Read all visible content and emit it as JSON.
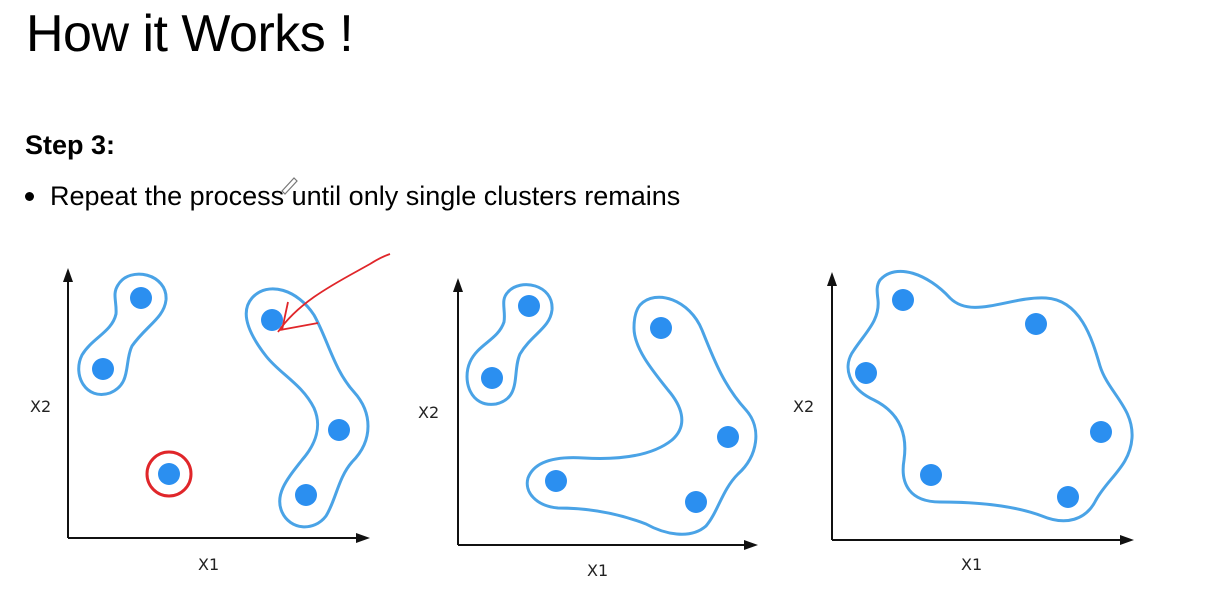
{
  "slide": {
    "title": "How it Works !",
    "step_heading": "Step 3:",
    "bullet": "Repeat the process until only single clusters remains"
  },
  "colors": {
    "point": "#2b8ff0",
    "cluster_outline": "#4aa3e6",
    "annotation": "#e0262a"
  },
  "diagrams": [
    {
      "x_label": "X1",
      "y_label": "X2"
    },
    {
      "x_label": "X1",
      "y_label": "X2"
    },
    {
      "x_label": "X1",
      "y_label": "X2"
    }
  ]
}
